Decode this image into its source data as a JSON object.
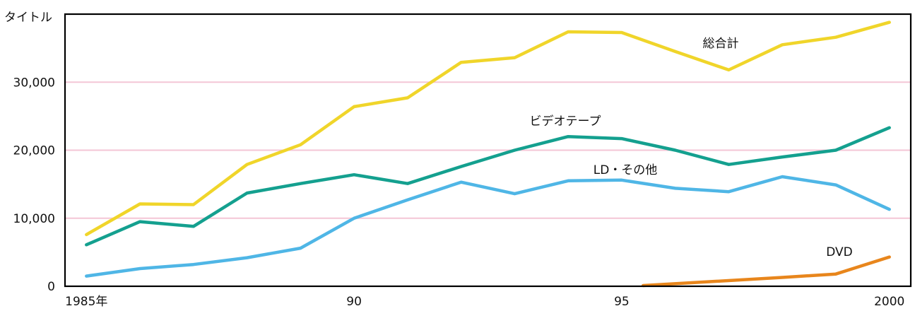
{
  "chart_data": {
    "type": "line",
    "title": "",
    "xlabel": "",
    "ylabel": "タイトル",
    "x": [
      1985,
      1986,
      1987,
      1988,
      1989,
      1990,
      1991,
      1992,
      1993,
      1994,
      1995,
      1996,
      1997,
      1998,
      1999,
      2000
    ],
    "x_tick_labels": [
      {
        "x": 1985,
        "label": "1985年"
      },
      {
        "x": 1990,
        "label": "90"
      },
      {
        "x": 1995,
        "label": "95"
      },
      {
        "x": 2000,
        "label": "2000"
      }
    ],
    "y_tick_labels": [
      {
        "y": 0,
        "label": "0"
      },
      {
        "y": 10000,
        "label": "10,000"
      },
      {
        "y": 20000,
        "label": "20,000"
      },
      {
        "y": 30000,
        "label": "30,000"
      }
    ],
    "xlim": [
      1984.6,
      2000.4
    ],
    "ylim": [
      0,
      40000
    ],
    "grid": true,
    "grid_color": "#f4c6d6",
    "series": [
      {
        "name": "総合計",
        "color": "#f0d52a",
        "points": [
          [
            1985,
            7600
          ],
          [
            1986,
            12100
          ],
          [
            1987,
            12000
          ],
          [
            1988,
            17900
          ],
          [
            1989,
            20800
          ],
          [
            1990,
            26400
          ],
          [
            1991,
            27700
          ],
          [
            1992,
            32900
          ],
          [
            1993,
            33600
          ],
          [
            1994,
            37400
          ],
          [
            1995,
            37300
          ],
          [
            1996,
            34500
          ],
          [
            1997,
            31800
          ],
          [
            1998,
            35500
          ],
          [
            1999,
            36600
          ],
          [
            2000,
            38800
          ]
        ]
      },
      {
        "name": "ビデオテープ",
        "color": "#14a08f",
        "points": [
          [
            1985,
            6100
          ],
          [
            1986,
            9500
          ],
          [
            1987,
            8800
          ],
          [
            1988,
            13700
          ],
          [
            1989,
            15100
          ],
          [
            1990,
            16400
          ],
          [
            1991,
            15100
          ],
          [
            1992,
            17600
          ],
          [
            1993,
            20000
          ],
          [
            1994,
            22000
          ],
          [
            1995,
            21700
          ],
          [
            1996,
            20000
          ],
          [
            1997,
            17900
          ],
          [
            1998,
            19000
          ],
          [
            1999,
            20000
          ],
          [
            2000,
            23300
          ]
        ]
      },
      {
        "name": "LD・その他",
        "color": "#4fb6e6",
        "points": [
          [
            1985,
            1500
          ],
          [
            1986,
            2600
          ],
          [
            1987,
            3200
          ],
          [
            1988,
            4200
          ],
          [
            1989,
            5600
          ],
          [
            1990,
            10000
          ],
          [
            1991,
            12700
          ],
          [
            1992,
            15300
          ],
          [
            1993,
            13600
          ],
          [
            1994,
            15500
          ],
          [
            1995,
            15600
          ],
          [
            1996,
            14400
          ],
          [
            1997,
            13900
          ],
          [
            1998,
            16100
          ],
          [
            1999,
            14900
          ],
          [
            2000,
            11300
          ]
        ]
      },
      {
        "name": "DVD",
        "color": "#e8861c",
        "points": [
          [
            1995.4,
            100
          ],
          [
            1998,
            1300
          ],
          [
            1999,
            1800
          ],
          [
            2000,
            4300
          ]
        ]
      }
    ]
  }
}
